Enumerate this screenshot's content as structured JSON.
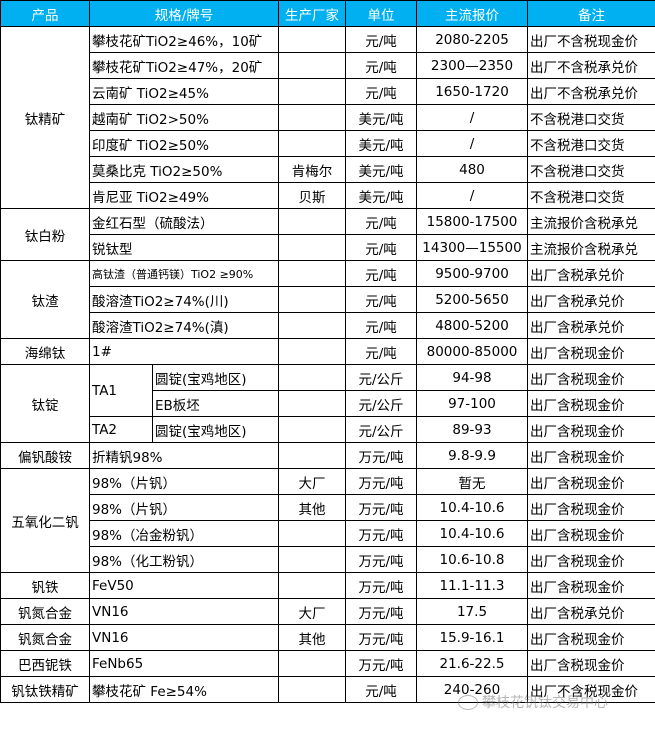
{
  "header": {
    "product": "产品",
    "spec": "规格/牌号",
    "maker": "生产厂家",
    "unit": "单位",
    "price": "主流报价",
    "note": "备注"
  },
  "header_color": "#00b0f0",
  "groups": [
    {
      "product": "钛精矿",
      "items": [
        {
          "spec": "攀枝花矿TiO2≥46%，10矿",
          "maker": "",
          "unit": "元/吨",
          "price": "2080-2205",
          "note": "出厂不含税现金价"
        },
        {
          "spec": "攀枝花矿TiO2≥47%，20矿",
          "maker": "",
          "unit": "元/吨",
          "price": "2300—2350",
          "note": "出厂不含税承兑价"
        },
        {
          "spec": "云南矿 TiO2≥45%",
          "maker": "",
          "unit": "元/吨",
          "price": "1650-1720",
          "note": "出厂不含税承兑价"
        },
        {
          "spec": "越南矿 TiO2>50%",
          "maker": "",
          "unit": "美元/吨",
          "price": "/",
          "note": "不含税港口交货"
        },
        {
          "spec": "印度矿 TiO2≥50%",
          "maker": "",
          "unit": "美元/吨",
          "price": "/",
          "note": "不含税港口交货"
        },
        {
          "spec": "莫桑比克 TiO2≥50%",
          "maker": "肯梅尔",
          "unit": "美元/吨",
          "price": "480",
          "note": "不含税港口交货"
        },
        {
          "spec": "肯尼亚 TiO2≥49%",
          "maker": "贝斯",
          "unit": "美元/吨",
          "price": "/",
          "note": "不含税港口交货"
        }
      ]
    },
    {
      "product": "钛白粉",
      "items": [
        {
          "spec": "金红石型（硫酸法）",
          "maker": "",
          "unit": "元/吨",
          "price": "15800-17500",
          "note": "主流报价含税承兑"
        },
        {
          "spec": "锐钛型",
          "maker": "",
          "unit": "元/吨",
          "price": "14300—15500",
          "note": "主流报价含税承兑"
        }
      ]
    },
    {
      "product": "钛渣",
      "items": [
        {
          "spec": "高钛渣（普通钙镁）TiO2 ≥90%",
          "maker": "",
          "unit": "元/吨",
          "price": "9500-9700",
          "note": "出厂含税承兑价",
          "small": true
        },
        {
          "spec": "酸溶渣TiO2≥74%(川)",
          "maker": "",
          "unit": "元/吨",
          "price": "5200-5650",
          "note": "出厂含税承兑价"
        },
        {
          "spec": "酸溶渣TiO2≥74%(滇)",
          "maker": "",
          "unit": "元/吨",
          "price": "4800-5200",
          "note": "出厂含税承兑价"
        }
      ]
    },
    {
      "product": "海绵钛",
      "items": [
        {
          "spec": "1#",
          "maker": "",
          "unit": "元/吨",
          "price": "80000-85000",
          "note": "出厂含税现金价"
        }
      ]
    },
    {
      "product": "钛锭",
      "sub": [
        {
          "grade": "TA1",
          "items": [
            {
              "spec": "圆锭(宝鸡地区)",
              "unit": "元/公斤",
              "price": "94-98",
              "note": "出厂含税现金价"
            },
            {
              "spec": "EB板坯",
              "unit": "元/公斤",
              "price": "97-100",
              "note": "出厂含税现金价"
            }
          ]
        },
        {
          "grade": "TA2",
          "items": [
            {
              "spec": "圆锭(宝鸡地区)",
              "unit": "元/公斤",
              "price": "89-93",
              "note": "出厂含税现金价"
            }
          ]
        }
      ]
    },
    {
      "product": "偏钒酸铵",
      "items": [
        {
          "spec": "折精钒98%",
          "maker": "",
          "unit": "万元/吨",
          "price": "9.8-9.9",
          "note": "出厂含税现金价"
        }
      ]
    },
    {
      "product": "五氧化二钒",
      "items": [
        {
          "spec": "98%（片钒）",
          "maker": "大厂",
          "unit": "万元/吨",
          "price": "暂无",
          "note": "出厂含税现金价"
        },
        {
          "spec": "98%（片钒）",
          "maker": "其他",
          "unit": "万元/吨",
          "price": "10.4-10.6",
          "note": "出厂含税现金价"
        },
        {
          "spec": "98%（冶金粉钒）",
          "maker": "",
          "unit": "万元/吨",
          "price": "10.4-10.6",
          "note": "出厂含税现金价"
        },
        {
          "spec": "98%（化工粉钒）",
          "maker": "",
          "unit": "万元/吨",
          "price": "10.6-10.8",
          "note": "出厂含税现金价"
        }
      ]
    },
    {
      "product": "钒铁",
      "items": [
        {
          "spec": "FeV50",
          "maker": "",
          "unit": "万元/吨",
          "price": "11.1-11.3",
          "note": "出厂含税现金价"
        }
      ]
    },
    {
      "product": "钒氮合金",
      "items": [
        {
          "spec": "VN16",
          "maker": "大厂",
          "unit": "万元/吨",
          "price": "17.5",
          "note": "出厂含税承兑价"
        }
      ]
    },
    {
      "product": "钒氮合金",
      "items": [
        {
          "spec": "VN16",
          "maker": "其他",
          "unit": "万元/吨",
          "price": "15.9-16.1",
          "note": "出厂含税现金价"
        }
      ]
    },
    {
      "product": "巴西铌铁",
      "items": [
        {
          "spec": "FeNb65",
          "maker": "",
          "unit": "万元/吨",
          "price": "21.6-22.5",
          "note": "出厂含税现金价"
        }
      ]
    },
    {
      "product": "钒钛铁精矿",
      "items": [
        {
          "spec": "攀枝花矿 Fe≥54%",
          "maker": "",
          "unit": "元/吨",
          "price": "240-260",
          "note": "出厂不含税现金价"
        }
      ]
    }
  ],
  "watermark": "攀枝花钒钛交易中心"
}
